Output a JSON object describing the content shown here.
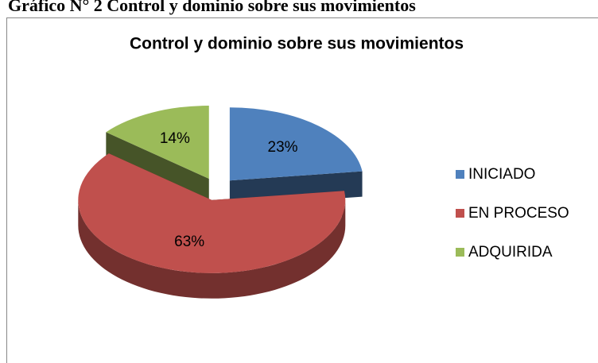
{
  "heading": "Gráfico N° 2 Control y dominio sobre sus movimientos",
  "chart_data": {
    "type": "pie3d",
    "title": "Control y dominio sobre sus movimientos",
    "categories": [
      "INICIADO",
      "EN PROCESO",
      "ADQUIRIDA"
    ],
    "values": [
      23,
      63,
      14
    ],
    "value_labels": [
      "23%",
      "63%",
      "14%"
    ],
    "colors": [
      "#4f81bd",
      "#c0504d",
      "#9bbb59"
    ],
    "legend": "right"
  }
}
